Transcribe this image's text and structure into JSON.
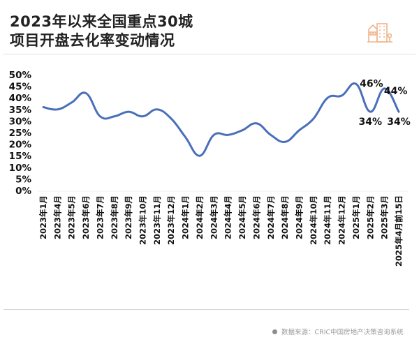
{
  "header": {
    "title_line1": "2023年以来全国重点30城",
    "title_line2": "项目开盘去化率变动情况",
    "logo_icon": "city-buildings-icon"
  },
  "footer": {
    "source": "数据来源：CRIC中国房地产决策咨询系统"
  },
  "colors": {
    "line": "#4a6fba",
    "logo": "#f0b48a",
    "text": "#111111",
    "source_text": "#9a9a9a"
  },
  "chart_data": {
    "type": "line",
    "title": "2023年以来全国重点30城项目开盘去化率变动情况",
    "xlabel": "",
    "ylabel": "",
    "ylim": [
      0,
      50
    ],
    "yticks": [
      "0%",
      "5%",
      "10%",
      "15%",
      "20%",
      "25%",
      "30%",
      "35%",
      "40%",
      "45%",
      "50%"
    ],
    "grid": false,
    "legend": null,
    "categories": [
      "2023年1月",
      "2023年4月",
      "2023年5月",
      "2023年6月",
      "2023年7月",
      "2023年8月",
      "2023年9月",
      "2023年10月",
      "2023年11月",
      "2023年12月",
      "2024年1月",
      "2024年2月",
      "2024年3月",
      "2024年4月",
      "2024年5月",
      "2024年6月",
      "2024年7月",
      "2024年8月",
      "2024年9月",
      "2024年10月",
      "2024年11月",
      "2024年12月",
      "2025年1月",
      "2025年2月",
      "2025年3月",
      "2025年4月前15日"
    ],
    "series": [
      {
        "name": "开盘去化率",
        "values": [
          36,
          35,
          38,
          42,
          32,
          32,
          34,
          32,
          35,
          31,
          23,
          15,
          24,
          24,
          26,
          29,
          24,
          21,
          26,
          31,
          40,
          41,
          46,
          34,
          44,
          34
        ]
      }
    ],
    "annotations": [
      {
        "category": "2025年1月",
        "label": "46%"
      },
      {
        "category": "2025年2月",
        "label": "34%"
      },
      {
        "category": "2025年3月",
        "label": "44%"
      },
      {
        "category": "2025年4月前15日",
        "label": "34%"
      }
    ]
  }
}
